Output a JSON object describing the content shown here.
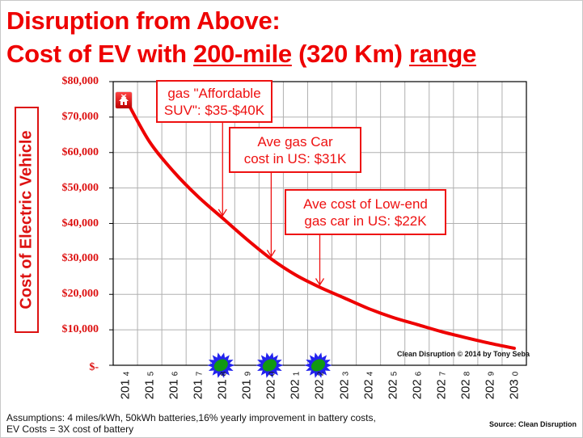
{
  "title": {
    "line1": "Disruption from Above:",
    "line2_parts": [
      "Cost of EV with ",
      "200-mile",
      " (320 Km) ",
      "range"
    ]
  },
  "colors": {
    "title": "#ee0000",
    "curve": "#ee0000",
    "annotation": "#ee1111",
    "starburst_outer": "#2222ee",
    "starburst_inner": "#119911"
  },
  "y_axis": {
    "label": "Cost of Electric Vehicle",
    "ticks": [
      "$80,000",
      "$70,000",
      "$60,000",
      "$50,000",
      "$40,000",
      "$30,000",
      "$20,000",
      "$10,000",
      "$-"
    ]
  },
  "x_axis": {
    "ticks": [
      {
        "main": "201",
        "sfx": "4"
      },
      {
        "main": "201",
        "sfx": "5"
      },
      {
        "main": "201",
        "sfx": "6"
      },
      {
        "main": "201",
        "sfx": "7"
      },
      {
        "main": "201",
        "sfx": "8"
      },
      {
        "main": "201",
        "sfx": "9"
      },
      {
        "main": "202",
        "sfx": "0"
      },
      {
        "main": "202",
        "sfx": "1"
      },
      {
        "main": "202",
        "sfx": "2"
      },
      {
        "main": "202",
        "sfx": "3"
      },
      {
        "main": "202",
        "sfx": "4"
      },
      {
        "main": "202",
        "sfx": "5"
      },
      {
        "main": "202",
        "sfx": "6"
      },
      {
        "main": "202",
        "sfx": "7"
      },
      {
        "main": "202",
        "sfx": "8"
      },
      {
        "main": "202",
        "sfx": "9"
      },
      {
        "main": "203",
        "sfx": "0"
      }
    ]
  },
  "annotations": [
    {
      "line1": "gas \"Affordable",
      "line2": "SUV\": $35-$40K"
    },
    {
      "line1": "Ave gas Car",
      "line2": "cost in US: $31K"
    },
    {
      "line1": "Ave cost of Low-end",
      "line2": "gas car in US: $22K"
    }
  ],
  "credit": "Clean Disruption © 2014 by Tony Seba",
  "footnote": "Assumptions: 4 miles/kWh, 50kWh batteries,16% yearly improvement in battery costs, EV Costs = 3X cost of battery",
  "source": "Source: Clean Disruption",
  "icons": {
    "start_marker": "home-icon",
    "milestones": [
      "starburst-icon",
      "starburst-icon",
      "starburst-icon"
    ]
  },
  "chart_data": {
    "type": "line",
    "title": "Disruption from Above: Cost of EV with 200-mile (320 Km) range",
    "xlabel": "",
    "ylabel": "Cost of Electric Vehicle",
    "ylim": [
      0,
      80000
    ],
    "grid": true,
    "categories": [
      "2014",
      "2015",
      "2016",
      "2017",
      "2018",
      "2019",
      "2020",
      "2021",
      "2022",
      "2023",
      "2024",
      "2025",
      "2026",
      "2027",
      "2028",
      "2029",
      "2030"
    ],
    "series": [
      {
        "name": "Cost of EV (200-mile range)",
        "values": [
          74000,
          63000,
          54500,
          47500,
          41500,
          35500,
          30000,
          25500,
          22000,
          19000,
          16000,
          13500,
          11500,
          9500,
          7800,
          6200,
          4800
        ]
      }
    ],
    "annotations": [
      {
        "text": "gas \"Affordable SUV\": $35-$40K",
        "x": "2018",
        "y": 41500
      },
      {
        "text": "Ave gas Car cost in US: $31K",
        "x": "2020",
        "y": 30000
      },
      {
        "text": "Ave cost of Low-end gas car in US: $22K",
        "x": "2022",
        "y": 22000
      }
    ],
    "milestone_markers_x": [
      "2018",
      "2020",
      "2022"
    ]
  }
}
